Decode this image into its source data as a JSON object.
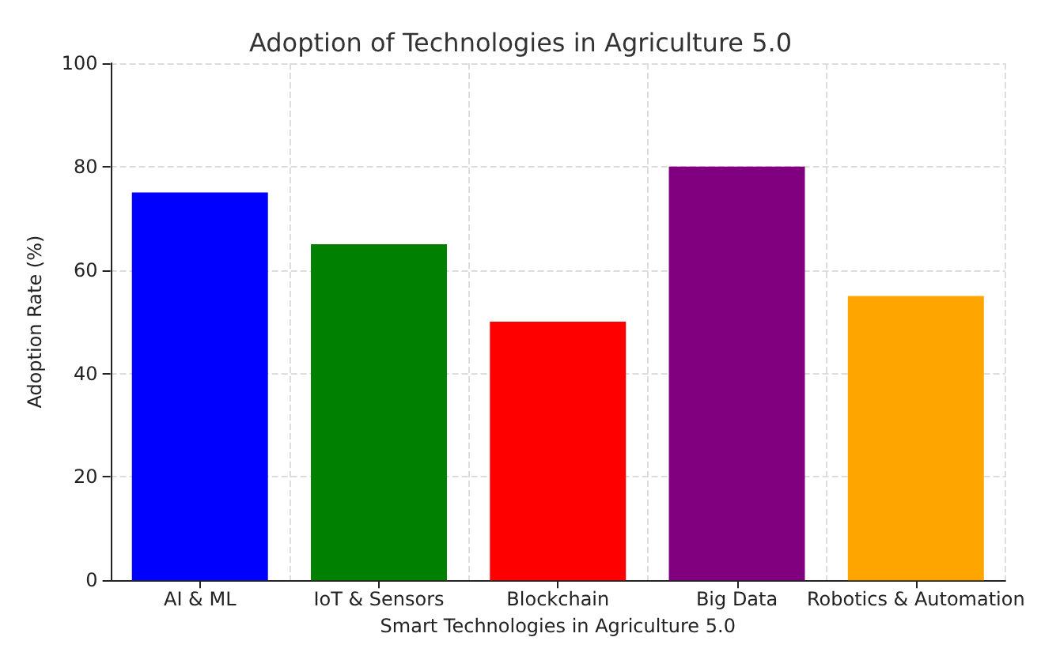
{
  "chart_data": {
    "type": "bar",
    "title": "Adoption of Technologies in Agriculture 5.0",
    "xlabel": "Smart Technologies in Agriculture 5.0",
    "ylabel": "Adoption Rate (%)",
    "categories": [
      "AI & ML",
      "IoT & Sensors",
      "Blockchain",
      "Big Data",
      "Robotics & Automation"
    ],
    "values": [
      75,
      65,
      50,
      80,
      55
    ],
    "colors": [
      "#0000ff",
      "#008000",
      "#ff0000",
      "#800080",
      "#ffa500"
    ],
    "ylim": [
      0,
      100
    ],
    "yticks": [
      0,
      20,
      40,
      60,
      80,
      100
    ],
    "grid": true
  }
}
